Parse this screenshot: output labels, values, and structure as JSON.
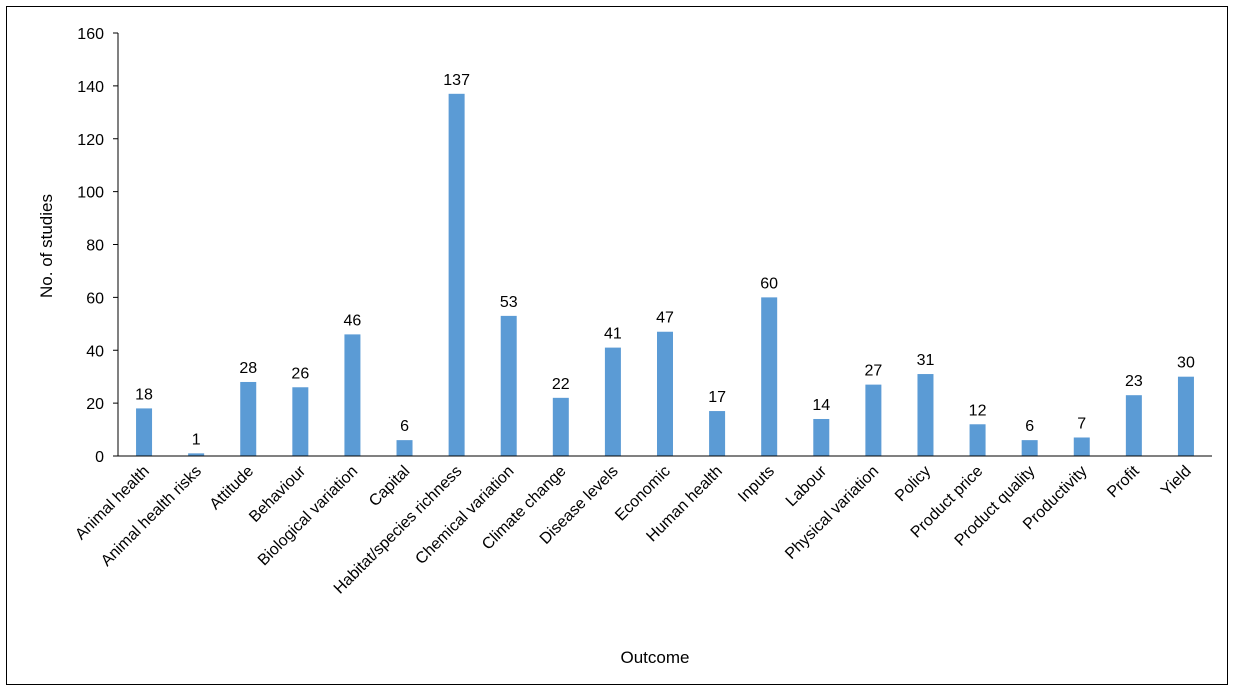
{
  "chart_data": {
    "type": "bar",
    "title": "",
    "xlabel": "Outcome",
    "ylabel": "No. of studies",
    "ylim": [
      0,
      160
    ],
    "yticks": [
      0,
      20,
      40,
      60,
      80,
      100,
      120,
      140,
      160
    ],
    "grid": false,
    "legend": "none",
    "bar_color": "#5B9BD5",
    "categories": [
      "Animal health",
      "Animal health risks",
      "Attitude",
      "Behaviour",
      "Biological variation",
      "Capital",
      "Habitat/species richness",
      "Chemical variation",
      "Climate change",
      "Disease levels",
      "Economic",
      "Human health",
      "Inputs",
      "Labour",
      "Physical variation",
      "Policy",
      "Product price",
      "Product quality",
      "Productivity",
      "Profit",
      "Yield"
    ],
    "values": [
      18,
      1,
      28,
      26,
      46,
      6,
      137,
      53,
      22,
      41,
      47,
      17,
      60,
      14,
      27,
      31,
      12,
      6,
      7,
      23,
      30
    ]
  }
}
